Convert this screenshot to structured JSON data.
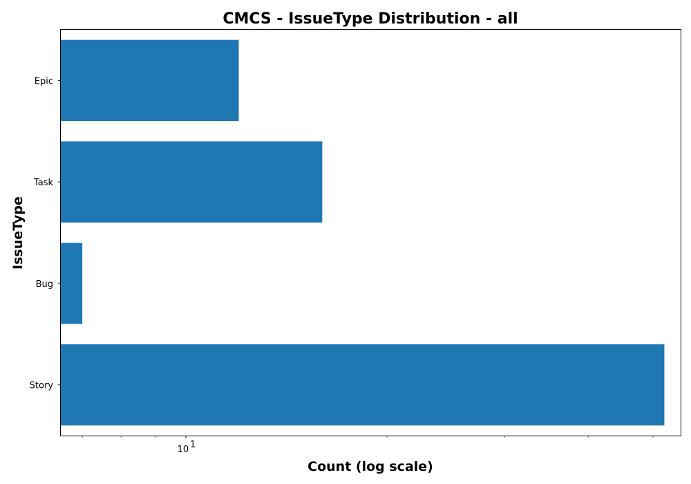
{
  "chart_data": {
    "type": "bar",
    "orientation": "horizontal",
    "title": "CMCS - IssueType Distribution - all",
    "xlabel": "Count (log scale)",
    "ylabel": "IssueType",
    "xscale": "log",
    "xlim": [
      6.5,
      55
    ],
    "x_tick_labels": [
      "10"
    ],
    "x_tick_exponents": [
      "1"
    ],
    "categories": [
      "Epic",
      "Task",
      "Bug",
      "Story"
    ],
    "values": [
      12,
      16,
      7,
      52
    ],
    "bar_color": "#1f77b4",
    "grid": false
  }
}
